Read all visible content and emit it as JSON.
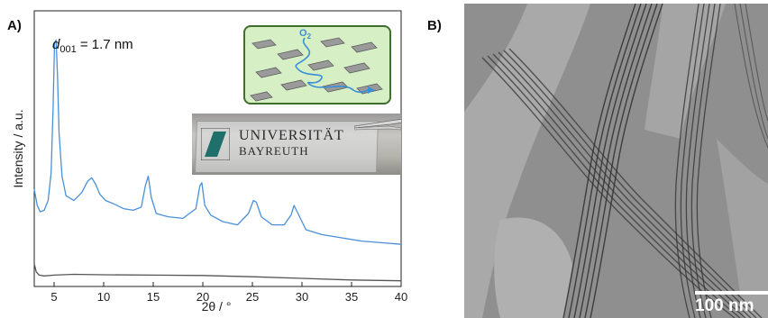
{
  "panel_a": {
    "label": "A)"
  },
  "panel_b": {
    "label": "B)"
  },
  "annotation": {
    "d_symbol": "d",
    "d_subscript": "001",
    "d_value": " = 1.7 nm"
  },
  "inset_schematic": {
    "o2_label": "O",
    "o2_subscript": "2"
  },
  "inset_photo": {
    "text_line1": "UNIVERSITÄT",
    "text_line2": "BAYREUTH"
  },
  "tem": {
    "scale_label": "100 nm"
  },
  "chart_data": {
    "type": "line",
    "xlabel": "2θ / °",
    "ylabel": "Intensity / a.u.",
    "xlim": [
      3,
      40
    ],
    "xticks": [
      5,
      10,
      15,
      20,
      25,
      30,
      35,
      40
    ],
    "yticks": [],
    "grid": false,
    "colors": {
      "series_1": "#4a90d9",
      "series_2": "#555555"
    },
    "series": [
      {
        "x": [
          3,
          3.3,
          3.6,
          4.0,
          4.4,
          4.7,
          4.9,
          5.05,
          5.2,
          5.35,
          5.5,
          5.8,
          6.2,
          7.0,
          7.8,
          8.4,
          8.8,
          9.2,
          9.6,
          10.2,
          11.0,
          12.0,
          13.0,
          13.8,
          14.2,
          14.5,
          14.8,
          15.3,
          16.5,
          18.0,
          19.3,
          19.7,
          19.9,
          20.2,
          20.8,
          22.0,
          23.5,
          24.6,
          25.1,
          25.4,
          25.9,
          27.0,
          28.2,
          28.9,
          29.2,
          29.6,
          30.4,
          32.0,
          34.0,
          36.0,
          38.0,
          40.0
        ],
        "values": [
          60,
          50,
          46,
          47,
          53,
          70,
          110,
          150,
          152,
          130,
          95,
          68,
          56,
          53,
          58,
          65,
          67,
          63,
          57,
          53,
          51,
          48,
          47,
          49,
          62,
          68,
          55,
          45,
          43,
          42,
          48,
          62,
          64,
          50,
          44,
          40,
          38,
          45,
          53,
          52,
          43,
          38,
          38,
          44,
          50,
          45,
          35,
          32,
          30,
          28,
          27,
          26
        ]
      },
      {
        "x": [
          3,
          3.2,
          3.5,
          4.0,
          5.0,
          7.0,
          10.0,
          15.0,
          20.0,
          25.0,
          30.0,
          35.0,
          40.0
        ],
        "values": [
          14,
          9,
          7,
          6.5,
          7,
          7.5,
          7.2,
          7,
          6.8,
          6,
          5,
          4,
          3.5
        ]
      }
    ]
  }
}
